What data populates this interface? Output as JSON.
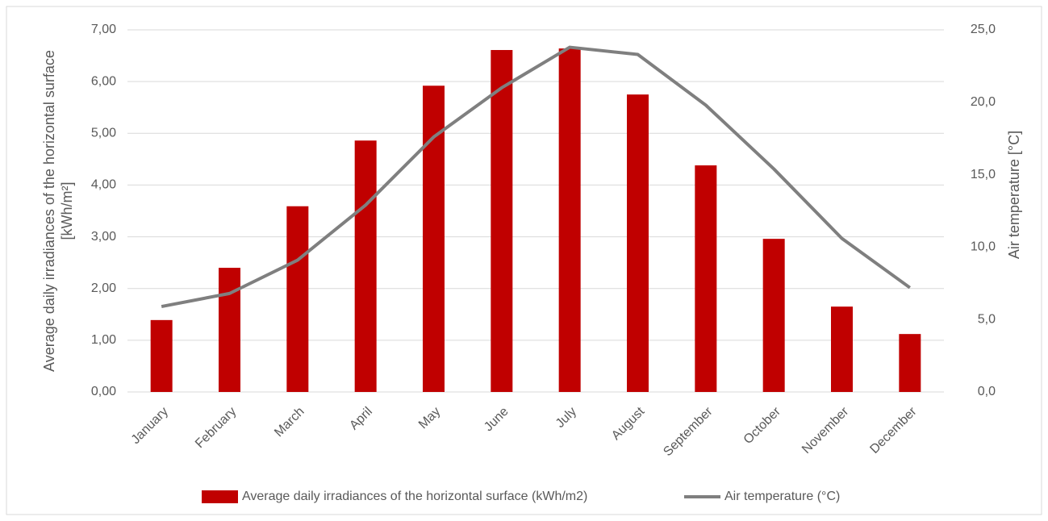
{
  "chart_data": {
    "type": "bar-line",
    "categories": [
      "January",
      "February",
      "March",
      "April",
      "May",
      "June",
      "July",
      "August",
      "September",
      "October",
      "November",
      "December"
    ],
    "series": [
      {
        "name": "Average daily irradiances of the horizontal surface (kWh/m2)",
        "type": "bar",
        "color": "#c00000",
        "values": [
          1.39,
          2.4,
          3.59,
          4.86,
          5.92,
          6.61,
          6.64,
          5.75,
          4.38,
          2.96,
          1.65,
          1.12
        ]
      },
      {
        "name": "Air temperature (°C)",
        "type": "line",
        "axis": "y2",
        "color": "#7f7f7f",
        "values": [
          5.9,
          6.8,
          9.1,
          12.9,
          17.6,
          21.0,
          23.8,
          23.3,
          19.8,
          15.4,
          10.6,
          7.2
        ]
      }
    ],
    "y_label": [
      "Average daily irradiances of the horizontal surface",
      "[kWh/m²]"
    ],
    "y2_label": "Air temperature [°C]",
    "ylim": [
      0,
      7
    ],
    "yticks": [
      {
        "value": 0,
        "label": "0,00"
      },
      {
        "value": 1,
        "label": "1,00"
      },
      {
        "value": 2,
        "label": "2,00"
      },
      {
        "value": 3,
        "label": "3,00"
      },
      {
        "value": 4,
        "label": "4,00"
      },
      {
        "value": 5,
        "label": "5,00"
      },
      {
        "value": 6,
        "label": "6,00"
      },
      {
        "value": 7,
        "label": "7,00"
      }
    ],
    "y2lim": [
      0,
      25
    ],
    "y2ticks": [
      {
        "value": 0,
        "label": "0,0"
      },
      {
        "value": 5,
        "label": "5,0"
      },
      {
        "value": 10,
        "label": "10,0"
      },
      {
        "value": 15,
        "label": "15,0"
      },
      {
        "value": 20,
        "label": "20,0"
      },
      {
        "value": 25,
        "label": "25,0"
      }
    ],
    "grid": true,
    "legend": "bottom"
  }
}
